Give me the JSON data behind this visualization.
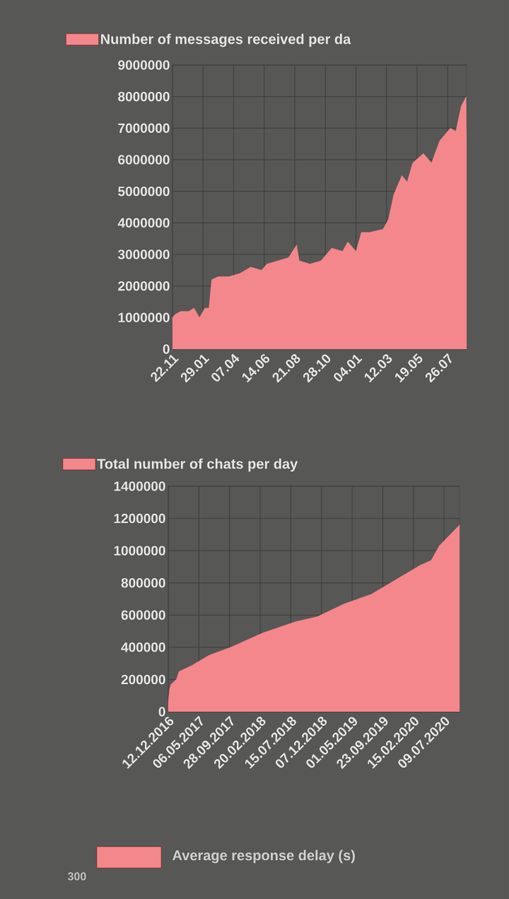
{
  "chart_data": [
    {
      "type": "area",
      "x": [
        "2018-11-22",
        "2018-11-28",
        "2018-12-10",
        "2018-12-28",
        "2019-01-09",
        "2019-01-21",
        "2019-02-02",
        "2019-02-11",
        "2019-02-17",
        "2019-03-04",
        "2019-03-28",
        "2019-04-21",
        "2019-05-15",
        "2019-06-08",
        "2019-06-20",
        "2019-07-14",
        "2019-08-07",
        "2019-08-25",
        "2019-08-31",
        "2019-09-24",
        "2019-10-18",
        "2019-11-11",
        "2019-12-05",
        "2019-12-17",
        "2020-01-04",
        "2020-01-16",
        "2020-02-03",
        "2020-03-04",
        "2020-03-16",
        "2020-03-28",
        "2020-04-15",
        "2020-04-27",
        "2020-05-09",
        "2020-06-02",
        "2020-06-20",
        "2020-07-08",
        "2020-08-01",
        "2020-08-13",
        "2020-08-25",
        "2020-09-05",
        "2020-09-06"
      ],
      "series": [
        {
          "name": "Number of messages received per da",
          "color": "#f4878b",
          "values": [
            1000000,
            1100000,
            1200000,
            1200000,
            1300000,
            1000000,
            1300000,
            1300000,
            2200000,
            2300000,
            2300000,
            2400000,
            2600000,
            2500000,
            2700000,
            2800000,
            2900000,
            3300000,
            2800000,
            2700000,
            2800000,
            3200000,
            3100000,
            3400000,
            3100000,
            3700000,
            3700000,
            3800000,
            4100000,
            4900000,
            5500000,
            5300000,
            5900000,
            6200000,
            5900000,
            6600000,
            7000000,
            6900000,
            7700000,
            8000000,
            6600000
          ]
        }
      ],
      "xlim": [
        "2018-11-22",
        "2020-09-06"
      ],
      "xticks": [
        {
          "value": "2018-11-22",
          "label": "22.11"
        },
        {
          "value": "2019-01-29",
          "label": "29.01"
        },
        {
          "value": "2019-04-07",
          "label": "07.04"
        },
        {
          "value": "2019-06-14",
          "label": "14.06"
        },
        {
          "value": "2019-08-21",
          "label": "21.08"
        },
        {
          "value": "2019-10-28",
          "label": "28.10"
        },
        {
          "value": "2020-01-04",
          "label": "04.01"
        },
        {
          "value": "2020-03-12",
          "label": "12.03"
        },
        {
          "value": "2020-05-19",
          "label": "19.05"
        },
        {
          "value": "2020-07-26",
          "label": "26.07"
        }
      ],
      "ylim": [
        0,
        9000000
      ],
      "yticks": [
        0,
        1000000,
        2000000,
        3000000,
        4000000,
        5000000,
        6000000,
        7000000,
        8000000,
        9000000
      ],
      "grid": true,
      "legend": "top"
    },
    {
      "type": "area",
      "x": [
        "2016-12-12",
        "2016-12-18",
        "2016-12-25",
        "2017-01-19",
        "2017-02-01",
        "2017-04-06",
        "2017-06-22",
        "2017-10-03",
        "2018-03-06",
        "2018-08-07",
        "2018-11-17",
        "2019-03-25",
        "2019-07-31",
        "2019-12-07",
        "2020-03-18",
        "2020-05-09",
        "2020-06-16",
        "2020-09-20"
      ],
      "series": [
        {
          "name": "Total number of chats per day",
          "color": "#f4878b",
          "values": [
            60000,
            140000,
            170000,
            200000,
            250000,
            290000,
            350000,
            400000,
            490000,
            560000,
            590000,
            670000,
            730000,
            830000,
            910000,
            940000,
            1030000,
            1160000
          ]
        }
      ],
      "xlim": [
        "2016-12-12",
        "2020-09-20"
      ],
      "xticks": [
        {
          "value": "2016-12-12",
          "label": "12.12.2016"
        },
        {
          "value": "2017-05-06",
          "label": "06.05.2017"
        },
        {
          "value": "2017-09-28",
          "label": "28.09.2017"
        },
        {
          "value": "2018-02-20",
          "label": "20.02.2018"
        },
        {
          "value": "2018-07-15",
          "label": "15.07.2018"
        },
        {
          "value": "2018-12-07",
          "label": "07.12.2018"
        },
        {
          "value": "2019-05-01",
          "label": "01.05.2019"
        },
        {
          "value": "2019-09-23",
          "label": "23.09.2019"
        },
        {
          "value": "2020-02-15",
          "label": "15.02.2020"
        },
        {
          "value": "2020-07-09",
          "label": "09.07.2020"
        }
      ],
      "ylim": [
        0,
        1400000
      ],
      "yticks": [
        0,
        200000,
        400000,
        600000,
        800000,
        1000000,
        1200000,
        1400000
      ],
      "grid": true,
      "legend": "top"
    },
    {
      "type": "other",
      "title": "Average response delay (s)",
      "color": "#f4878b",
      "annotations": [
        "300"
      ]
    }
  ]
}
